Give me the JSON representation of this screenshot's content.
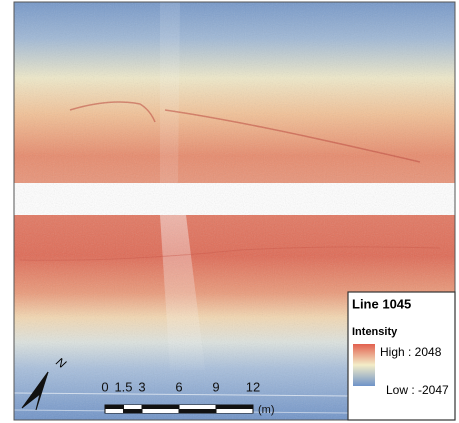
{
  "map": {
    "legend": {
      "title": "Line 1045",
      "field": "Intensity",
      "high": "High : 2048",
      "low": "Low : -2047"
    },
    "scale_bar": {
      "ticks": [
        0,
        1.5,
        3,
        6,
        9,
        12
      ],
      "unit": "(m)"
    },
    "north_arrow": "N"
  }
}
